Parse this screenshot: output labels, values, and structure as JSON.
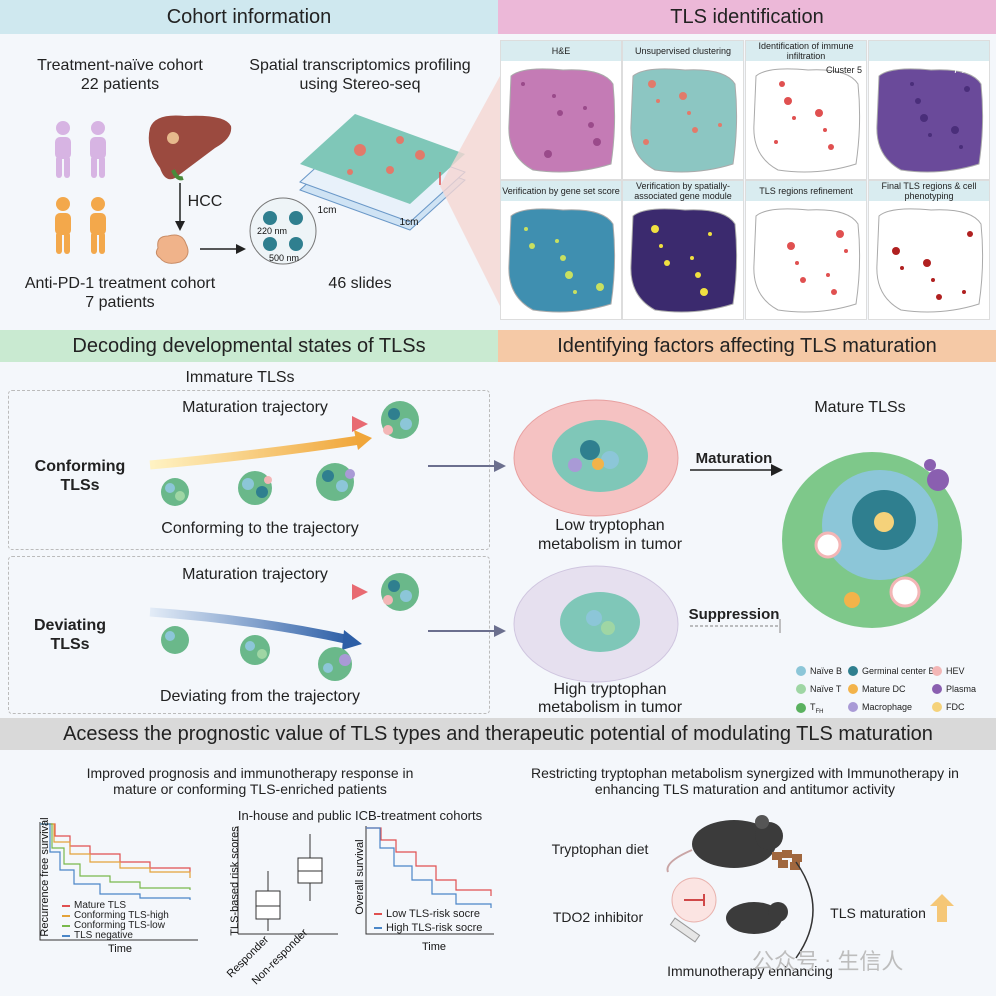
{
  "headers": {
    "cohort": "Cohort information",
    "tls_id": "TLS identification",
    "decoding": "Decoding developmental states of TLSs",
    "factors": "Identifying factors affecting TLS maturation",
    "prognostic": "Acesess the prognostic value of TLS types and therapeutic potential of modulating TLS maturation"
  },
  "cohort": {
    "naive_title": "Treatment-naïve cohort",
    "naive_count": "22 patients",
    "st_title": "Spatial transcriptomics profiling",
    "st_method": "using Stereo-seq",
    "hcc": "HCC",
    "dim_220": "220 nm",
    "dim_500": "500 nm",
    "dim_1cm_a": "1cm",
    "dim_1cm_b": "1cm",
    "pd1_title": "Anti-PD-1 treatment cohort",
    "pd1_count": "7 patients",
    "slides": "46 slides"
  },
  "tls_panels": [
    {
      "label": "H&E",
      "note": ""
    },
    {
      "label": "Unsupervised clustering",
      "note": ""
    },
    {
      "label": "Identification of immune infiltration",
      "note": "Cluster 5"
    },
    {
      "label": "",
      "note": "PTPRC"
    },
    {
      "label": "Verification by gene set score",
      "note": ""
    },
    {
      "label": "Verification by spatially-associated gene module",
      "note": ""
    },
    {
      "label": "TLS regions refinement",
      "note": ""
    },
    {
      "label": "Final TLS regions & cell phenotyping",
      "note": ""
    }
  ],
  "decoding": {
    "immature": "Immature TLSs",
    "traj1": "Maturation trajectory",
    "conforming": "Conforming TLSs",
    "conforming_sub": "Conforming to the trajectory",
    "traj2": "Maturation trajectory",
    "deviating": "Deviating TLSs",
    "deviating_sub": "Deviating from the trajectory"
  },
  "factors": {
    "mature_title": "Mature TLSs",
    "maturation": "Maturation",
    "suppression": "Suppression",
    "low_trp_1": "Low tryptophan",
    "low_trp_2": "metabolism in tumor",
    "high_trp_1": "High tryptophan",
    "high_trp_2": "metabolism in tumor"
  },
  "legend": [
    {
      "label": "Naïve B",
      "color": "#8cc6d8"
    },
    {
      "label": "Germinal center B",
      "color": "#2f7f8f"
    },
    {
      "label": "HEV",
      "color": "#f3b6b6"
    },
    {
      "label": "Naïve T",
      "color": "#9fd6a4"
    },
    {
      "label": "Mature DC",
      "color": "#f3b34a"
    },
    {
      "label": "Plasma",
      "color": "#8a5fb0"
    },
    {
      "label": "T",
      "color": "#5ab15f"
    },
    {
      "label": "Macrophage",
      "color": "#a99ad6"
    },
    {
      "label": "FDC",
      "color": "#f5d27a"
    }
  ],
  "legend_sub": "FH",
  "prognostic": {
    "left_title_1": "Improved prognosis and immunotherapy response in",
    "left_title_2": "mature or conforming TLS-enriched patients",
    "icb_title": "In-house and public ICB-treatment cohorts",
    "right_title_1": "Restricting tryptophan metabolism synergized with Immunotherapy in",
    "right_title_2": "enhancing TLS maturation and antitumor activity",
    "km1_ylabel": "Recurrence free survival",
    "km1_xlabel": "Time",
    "km1_legend": [
      {
        "label": "Mature TLS",
        "color": "#e05050"
      },
      {
        "label": "Conforming TLS-high",
        "color": "#e3a23a"
      },
      {
        "label": "Conforming TLS-low",
        "color": "#79b84c"
      },
      {
        "label": "TLS negative",
        "color": "#4a86c8"
      }
    ],
    "box_ylabel": "TLS-based risk scores",
    "box_x1": "Responder",
    "box_x2": "Non-responder",
    "km2_ylabel": "Overall survival",
    "km2_xlabel": "Time",
    "km2_legend": [
      {
        "label": "Low TLS-risk socre",
        "color": "#e05050"
      },
      {
        "label": "High TLS-risk socre",
        "color": "#4a86c8"
      }
    ],
    "trp_diet": "Tryptophan diet",
    "tdo2": "TDO2 inhibitor",
    "tls_mat": "TLS maturation",
    "immuno": "Immunotherapy enhancing"
  },
  "watermark": {
    "text1": "公众号",
    "sep": "·",
    "text2": "生信人"
  }
}
